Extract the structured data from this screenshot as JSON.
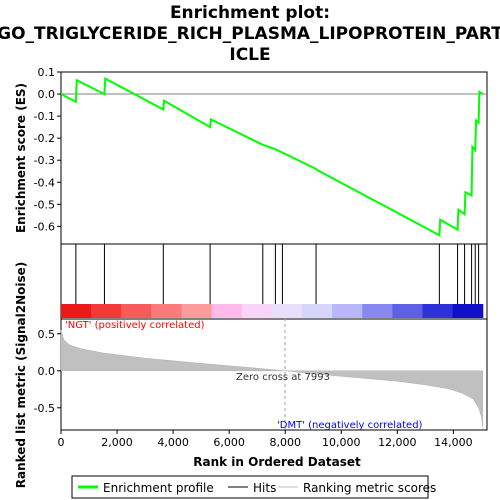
{
  "chart_data": {
    "type": "line",
    "title_lines": [
      "Enrichment plot:",
      "GO_TRIGLYCERIDE_RICH_PLASMA_LIPOPROTEIN_PART",
      "ICLE"
    ],
    "xlabel": "Rank in Ordered Dataset",
    "ylabel_top": "Enrichment score (ES)",
    "ylabel_bottom": "Ranked list metric (Signal2Noise)",
    "xlim": [
      0,
      15200
    ],
    "x_ticks": [
      0,
      2000,
      4000,
      6000,
      8000,
      10000,
      12000,
      14000
    ],
    "x_tick_labels": [
      "0",
      "2,000",
      "4,000",
      "6,000",
      "8,000",
      "10,000",
      "12,000",
      "14,000"
    ],
    "es_ylim": [
      -0.68,
      0.1
    ],
    "es_ticks": [
      0.1,
      0.0,
      -0.1,
      -0.2,
      -0.3,
      -0.4,
      -0.5,
      -0.6
    ],
    "es_tick_labels": [
      "0.1",
      "0.0",
      "-0.1",
      "-0.2",
      "-0.3",
      "-0.4",
      "-0.5",
      "-0.6"
    ],
    "metric_ylim": [
      -0.8,
      0.7
    ],
    "metric_ticks": [
      0.5,
      0.0,
      -0.5
    ],
    "metric_tick_labels": [
      "0.5",
      "0.0",
      "-0.5"
    ],
    "series": [
      {
        "name": "Enrichment profile",
        "color": "#00ff00",
        "x": [
          0,
          530,
          560,
          1550,
          1580,
          3650,
          3680,
          5320,
          5350,
          7200,
          7650,
          7900,
          9100,
          9150,
          13500,
          13530,
          14150,
          14180,
          14400,
          14430,
          14650,
          14680,
          14780,
          14810,
          14900,
          14930,
          15050
        ],
        "y": [
          0.0,
          -0.035,
          0.063,
          0.0,
          0.07,
          -0.07,
          -0.03,
          -0.15,
          -0.115,
          -0.23,
          -0.25,
          -0.265,
          -0.34,
          -0.345,
          -0.64,
          -0.57,
          -0.615,
          -0.525,
          -0.545,
          -0.445,
          -0.46,
          -0.24,
          -0.255,
          -0.12,
          -0.13,
          0.01,
          0.0
        ]
      }
    ],
    "hits": [
      530,
      1550,
      3650,
      5320,
      7200,
      7650,
      7900,
      9100,
      13500,
      14150,
      14400,
      14650,
      14780,
      14900
    ],
    "metric_profile": {
      "x": [
        0,
        100,
        300,
        700,
        1500,
        3000,
        5000,
        7000,
        7993,
        9000,
        10500,
        12000,
        13000,
        13800,
        14300,
        14700,
        14900,
        15000,
        15050
      ],
      "y": [
        0.55,
        0.42,
        0.35,
        0.3,
        0.24,
        0.17,
        0.1,
        0.035,
        0.0,
        -0.04,
        -0.09,
        -0.14,
        -0.19,
        -0.24,
        -0.3,
        -0.38,
        -0.5,
        -0.62,
        -0.78
      ]
    },
    "zero_cross_label": "Zero cross at 7993",
    "zero_cross_x": 7993,
    "pos_label": "'NGT' (positively correlated)",
    "pos_color": "#ff0000",
    "neg_label": "'DMT' (negatively correlated)",
    "neg_color": "#0000ff",
    "legend": [
      {
        "label": "Enrichment profile",
        "color": "#00ff00"
      },
      {
        "label": "Hits",
        "color": "#000000"
      },
      {
        "label": "Ranking metric scores",
        "color": "#c0c0c0"
      }
    ],
    "band_colors": [
      "#ea1a1a",
      "#f23a3a",
      "#f75a5a",
      "#fb7a7a",
      "#fd9a9a",
      "#fdbaea",
      "#f9d4f9",
      "#e8e0fb",
      "#d6d6fb",
      "#b8b8f8",
      "#8888f0",
      "#6060e6",
      "#3030d8",
      "#1010c8"
    ]
  }
}
